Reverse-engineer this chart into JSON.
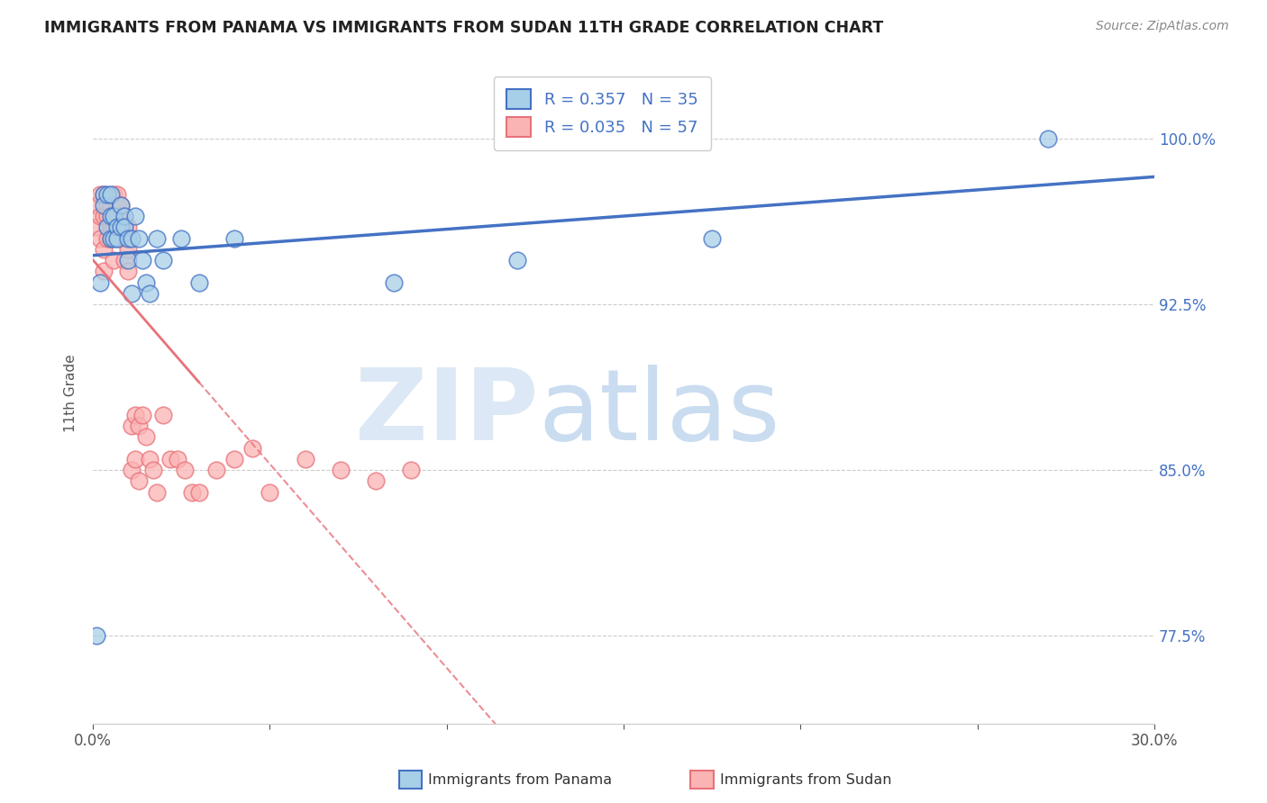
{
  "title": "IMMIGRANTS FROM PANAMA VS IMMIGRANTS FROM SUDAN 11TH GRADE CORRELATION CHART",
  "source": "Source: ZipAtlas.com",
  "ylabel": "11th Grade",
  "ylabel_ticks": [
    "77.5%",
    "85.0%",
    "92.5%",
    "100.0%"
  ],
  "ylabel_values": [
    0.775,
    0.85,
    0.925,
    1.0
  ],
  "xlim": [
    0.0,
    0.3
  ],
  "ylim": [
    0.735,
    1.035
  ],
  "legend_R_panama": "R = 0.357",
  "legend_N_panama": "N = 35",
  "legend_R_sudan": "R = 0.035",
  "legend_N_sudan": "N = 57",
  "panama_color_fill": "#a8cfe8",
  "sudan_color_fill": "#fbb4b4",
  "trend_blue": "#4472C4",
  "trend_pink": "#E8727A",
  "panama_x": [
    0.001,
    0.002,
    0.003,
    0.003,
    0.004,
    0.004,
    0.005,
    0.005,
    0.005,
    0.006,
    0.006,
    0.007,
    0.007,
    0.008,
    0.008,
    0.009,
    0.009,
    0.01,
    0.01,
    0.011,
    0.011,
    0.012,
    0.013,
    0.014,
    0.015,
    0.016,
    0.018,
    0.02,
    0.025,
    0.03,
    0.04,
    0.085,
    0.12,
    0.175,
    0.27
  ],
  "panama_y": [
    0.775,
    0.935,
    0.975,
    0.97,
    0.96,
    0.975,
    0.965,
    0.975,
    0.955,
    0.965,
    0.955,
    0.96,
    0.955,
    0.97,
    0.96,
    0.965,
    0.96,
    0.955,
    0.945,
    0.955,
    0.93,
    0.965,
    0.955,
    0.945,
    0.935,
    0.93,
    0.955,
    0.945,
    0.955,
    0.935,
    0.955,
    0.935,
    0.945,
    0.955,
    1.0
  ],
  "sudan_x": [
    0.001,
    0.001,
    0.002,
    0.002,
    0.002,
    0.003,
    0.003,
    0.003,
    0.003,
    0.004,
    0.004,
    0.004,
    0.005,
    0.005,
    0.005,
    0.006,
    0.006,
    0.006,
    0.006,
    0.007,
    0.007,
    0.007,
    0.007,
    0.008,
    0.008,
    0.008,
    0.009,
    0.009,
    0.009,
    0.01,
    0.01,
    0.01,
    0.011,
    0.011,
    0.012,
    0.012,
    0.013,
    0.013,
    0.014,
    0.015,
    0.016,
    0.017,
    0.018,
    0.02,
    0.022,
    0.024,
    0.026,
    0.028,
    0.03,
    0.035,
    0.04,
    0.045,
    0.05,
    0.06,
    0.07,
    0.08,
    0.09
  ],
  "sudan_y": [
    0.97,
    0.96,
    0.975,
    0.965,
    0.955,
    0.975,
    0.965,
    0.95,
    0.94,
    0.97,
    0.965,
    0.955,
    0.97,
    0.96,
    0.955,
    0.975,
    0.965,
    0.96,
    0.945,
    0.975,
    0.97,
    0.965,
    0.955,
    0.97,
    0.965,
    0.955,
    0.965,
    0.96,
    0.945,
    0.96,
    0.95,
    0.94,
    0.87,
    0.85,
    0.875,
    0.855,
    0.87,
    0.845,
    0.875,
    0.865,
    0.855,
    0.85,
    0.84,
    0.875,
    0.855,
    0.855,
    0.85,
    0.84,
    0.84,
    0.85,
    0.855,
    0.86,
    0.84,
    0.855,
    0.85,
    0.845,
    0.85
  ]
}
